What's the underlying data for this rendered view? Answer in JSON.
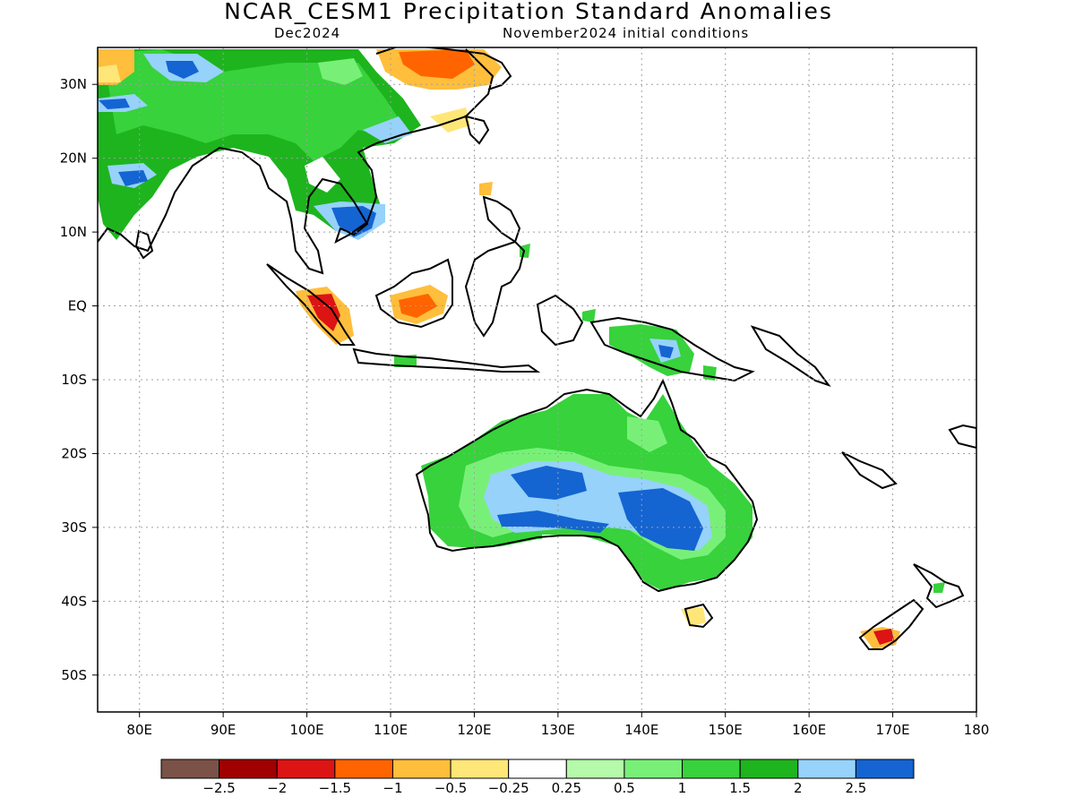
{
  "title": "NCAR_CESM1 Precipitation Standard Anomalies",
  "subtitle_left": "Dec2024",
  "subtitle_right": "November2024 initial conditions",
  "lat_labels": [
    "30N",
    "20N",
    "10N",
    "EQ",
    "10S",
    "20S",
    "30S",
    "40S",
    "50S"
  ],
  "lon_labels": [
    "80E",
    "90E",
    "100E",
    "110E",
    "120E",
    "130E",
    "140E",
    "150E",
    "160E",
    "170E",
    "180"
  ],
  "colorbar": {
    "colors": [
      "#7a5248",
      "#a00000",
      "#dc1414",
      "#ff6400",
      "#ffbe3c",
      "#ffe678",
      "#ffffff",
      "#b4faaa",
      "#78f078",
      "#37d23c",
      "#1eb41e",
      "#96d2fa",
      "#1464d2"
    ],
    "labels": [
      "−2.5",
      "−2",
      "−1.5",
      "−1",
      "−0.5",
      "−0.25",
      "0.25",
      "0.5",
      "1",
      "1.5",
      "2",
      "2.5"
    ]
  },
  "chart_data": {
    "type": "map",
    "title": "NCAR_CESM1 Precipitation Standard Anomalies",
    "valid_month": "Dec2024",
    "initial_conditions": "November2024",
    "region": {
      "lon_range": [
        75,
        180
      ],
      "lat_range": [
        -55,
        35
      ]
    },
    "grid": true,
    "legend": "bottom",
    "anomaly_regions": [
      {
        "region": "Australia interior",
        "anomaly": "positive",
        "peak": 2.5
      },
      {
        "region": "Eastern Australia",
        "anomaly": "positive",
        "peak": 2.5
      },
      {
        "region": "Northern Australia",
        "anomaly": "positive",
        "peak": 1.5
      },
      {
        "region": "India",
        "anomaly": "positive",
        "peak": 2.5
      },
      {
        "region": "Indochina / Southern China",
        "anomaly": "positive",
        "peak": 2.5
      },
      {
        "region": "Tibet",
        "anomaly": "positive",
        "peak": 2.5
      },
      {
        "region": "New Guinea",
        "anomaly": "positive",
        "peak": 2
      },
      {
        "region": "Central-East China",
        "anomaly": "negative",
        "peak": -1.5
      },
      {
        "region": "Sumatra",
        "anomaly": "negative",
        "peak": -2
      },
      {
        "region": "Borneo",
        "anomaly": "negative",
        "peak": -1
      },
      {
        "region": "New Zealand South Island",
        "anomaly": "negative",
        "peak": -2
      }
    ]
  }
}
